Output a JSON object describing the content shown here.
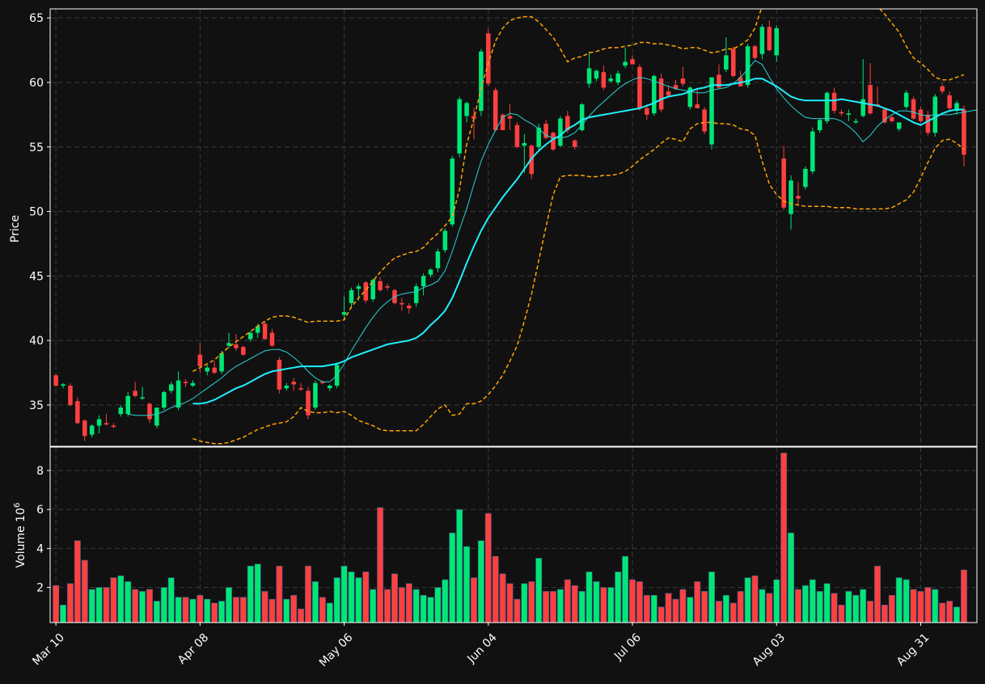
{
  "colors": {
    "background": "#111111",
    "up": "#00e676",
    "down": "#ff4040",
    "grid": "#3a3a3a",
    "axis": "#ffffff",
    "sma_fast": "#29d3d3",
    "sma_slow": "#1ff0ff",
    "bollinger": "#ffa500"
  },
  "chart_data": {
    "type": "candlestick",
    "x_tick_labels": [
      "Mar 10",
      "Apr 08",
      "May 06",
      "Jun 04",
      "Jul 06",
      "Aug 03",
      "Aug 31"
    ],
    "x_tick_index": [
      0,
      20,
      40,
      60,
      80,
      100,
      120
    ],
    "price_panel": {
      "ylabel": "Price",
      "ylim": [
        31.8,
        65.7
      ],
      "y_ticks": [
        35,
        40,
        45,
        50,
        55,
        60,
        65
      ],
      "grid": true
    },
    "volume_panel": {
      "ylabel": "Volume",
      "ylabel_exponent": "10",
      "ylabel_power": "6",
      "ylim": [
        0.2,
        9.2
      ],
      "y_ticks": [
        2,
        4,
        6,
        8
      ],
      "grid": true
    },
    "ohlc": [
      [
        37.3,
        37.4,
        36.4,
        36.5
      ],
      [
        36.5,
        36.7,
        36.3,
        36.6
      ],
      [
        36.5,
        36.7,
        34.9,
        35.0
      ],
      [
        35.3,
        35.6,
        33.5,
        33.6
      ],
      [
        33.8,
        33.9,
        32.2,
        32.6
      ],
      [
        32.7,
        33.5,
        32.5,
        33.4
      ],
      [
        33.4,
        34.2,
        32.8,
        33.9
      ],
      [
        33.6,
        34.3,
        33.4,
        33.5
      ],
      [
        33.4,
        33.6,
        33.2,
        33.3
      ],
      [
        34.3,
        35.0,
        34.1,
        34.8
      ],
      [
        34.3,
        36.0,
        34.1,
        35.7
      ],
      [
        36.1,
        36.8,
        35.6,
        35.7
      ],
      [
        35.6,
        36.4,
        35.4,
        35.6
      ],
      [
        35.1,
        35.2,
        33.6,
        33.9
      ],
      [
        33.4,
        34.8,
        33.2,
        34.8
      ],
      [
        34.8,
        36.1,
        34.6,
        36.0
      ],
      [
        36.1,
        36.8,
        35.9,
        36.6
      ],
      [
        34.8,
        37.6,
        34.6,
        36.9
      ],
      [
        36.8,
        37.0,
        36.4,
        36.7
      ],
      [
        36.5,
        36.9,
        36.4,
        36.7
      ],
      [
        38.9,
        39.8,
        37.5,
        38.0
      ],
      [
        37.6,
        38.1,
        37.3,
        37.9
      ],
      [
        37.9,
        38.4,
        37.4,
        37.5
      ],
      [
        37.6,
        39.2,
        37.4,
        39.0
      ],
      [
        39.6,
        40.6,
        39.4,
        39.8
      ],
      [
        39.7,
        40.5,
        39.2,
        39.4
      ],
      [
        39.5,
        39.6,
        38.8,
        38.9
      ],
      [
        40.1,
        40.7,
        39.9,
        40.6
      ],
      [
        40.6,
        41.3,
        40.2,
        41.1
      ],
      [
        41.3,
        41.5,
        40.1,
        40.1
      ],
      [
        40.6,
        40.9,
        39.5,
        39.6
      ],
      [
        38.5,
        38.7,
        35.9,
        36.2
      ],
      [
        36.3,
        36.7,
        36.1,
        36.5
      ],
      [
        36.8,
        37.1,
        36.1,
        36.6
      ],
      [
        36.3,
        36.7,
        36.1,
        36.2
      ],
      [
        36.1,
        36.4,
        33.9,
        34.2
      ],
      [
        34.8,
        36.9,
        34.6,
        36.7
      ],
      [
        36.8,
        36.9,
        36.6,
        36.7
      ],
      [
        36.3,
        36.6,
        36.1,
        36.5
      ],
      [
        36.5,
        38.3,
        36.3,
        38.1
      ],
      [
        42.0,
        43.4,
        41.6,
        42.2
      ],
      [
        42.9,
        44.1,
        42.5,
        43.9
      ],
      [
        44.0,
        44.4,
        43.1,
        44.2
      ],
      [
        44.5,
        44.6,
        42.9,
        43.1
      ],
      [
        43.2,
        44.8,
        43.0,
        44.7
      ],
      [
        44.6,
        44.9,
        43.8,
        43.9
      ],
      [
        44.2,
        44.4,
        43.9,
        44.1
      ],
      [
        43.9,
        44.0,
        42.8,
        42.9
      ],
      [
        42.9,
        43.3,
        42.3,
        42.8
      ],
      [
        42.7,
        42.9,
        42.1,
        42.5
      ],
      [
        42.9,
        44.4,
        42.6,
        44.2
      ],
      [
        44.2,
        45.2,
        43.5,
        45.0
      ],
      [
        45.1,
        45.6,
        44.9,
        45.5
      ],
      [
        45.6,
        47.1,
        45.3,
        46.9
      ],
      [
        47.0,
        48.7,
        46.8,
        48.5
      ],
      [
        49.0,
        54.3,
        48.8,
        54.1
      ],
      [
        54.5,
        58.9,
        54.2,
        58.7
      ],
      [
        57.4,
        58.5,
        56.9,
        58.4
      ],
      [
        57.4,
        58.0,
        55.6,
        57.2
      ],
      [
        57.8,
        62.6,
        57.4,
        62.4
      ],
      [
        63.8,
        64.1,
        59.7,
        59.9
      ],
      [
        59.4,
        59.6,
        56.2,
        56.3
      ],
      [
        57.5,
        57.6,
        56.3,
        56.3
      ],
      [
        57.4,
        58.3,
        56.3,
        57.2
      ],
      [
        56.7,
        56.9,
        54.9,
        55.0
      ],
      [
        55.1,
        56.0,
        53.0,
        55.3
      ],
      [
        55.1,
        55.2,
        52.5,
        52.9
      ],
      [
        55.0,
        56.8,
        54.8,
        56.5
      ],
      [
        56.8,
        57.1,
        55.6,
        55.7
      ],
      [
        56.1,
        56.2,
        54.7,
        54.8
      ],
      [
        55.1,
        57.4,
        55.0,
        57.2
      ],
      [
        57.4,
        57.8,
        56.1,
        56.3
      ],
      [
        55.5,
        55.6,
        54.8,
        55.0
      ],
      [
        56.3,
        58.4,
        56.2,
        58.3
      ],
      [
        59.9,
        62.4,
        59.6,
        61.1
      ],
      [
        60.3,
        61.0,
        60.1,
        60.9
      ],
      [
        60.8,
        61.3,
        59.4,
        59.6
      ],
      [
        60.1,
        60.6,
        60.0,
        60.3
      ],
      [
        60.0,
        60.9,
        59.8,
        60.7
      ],
      [
        61.3,
        62.7,
        61.1,
        61.6
      ],
      [
        61.8,
        62.1,
        61.4,
        61.4
      ],
      [
        61.2,
        61.4,
        57.8,
        58.0
      ],
      [
        58.0,
        58.3,
        57.1,
        57.5
      ],
      [
        57.6,
        60.6,
        57.4,
        60.5
      ],
      [
        60.3,
        60.7,
        57.7,
        57.9
      ],
      [
        59.3,
        59.8,
        58.9,
        59.0
      ],
      [
        59.8,
        60.2,
        59.4,
        59.5
      ],
      [
        60.3,
        61.2,
        59.7,
        59.9
      ],
      [
        58.1,
        59.7,
        57.9,
        59.6
      ],
      [
        58.3,
        59.5,
        58.1,
        58.0
      ],
      [
        57.9,
        58.1,
        56.0,
        56.2
      ],
      [
        55.2,
        60.4,
        54.8,
        60.4
      ],
      [
        60.6,
        61.4,
        59.5,
        59.6
      ],
      [
        61.0,
        63.5,
        60.8,
        62.1
      ],
      [
        62.6,
        62.8,
        60.4,
        60.5
      ],
      [
        60.4,
        60.9,
        59.7,
        59.7
      ],
      [
        59.8,
        63.0,
        59.6,
        62.8
      ],
      [
        62.8,
        62.9,
        61.8,
        61.9
      ],
      [
        62.2,
        64.5,
        61.8,
        64.3
      ],
      [
        64.3,
        64.8,
        62.4,
        62.5
      ],
      [
        62.1,
        64.4,
        61.6,
        64.2
      ],
      [
        54.1,
        55.1,
        50.1,
        50.3
      ],
      [
        49.8,
        52.8,
        48.6,
        52.4
      ],
      [
        51.2,
        52.3,
        50.5,
        51.0
      ],
      [
        51.9,
        53.5,
        51.7,
        53.3
      ],
      [
        53.1,
        56.5,
        52.9,
        56.2
      ],
      [
        56.3,
        57.2,
        56.1,
        57.1
      ],
      [
        57.0,
        59.3,
        56.8,
        59.2
      ],
      [
        59.2,
        59.6,
        57.6,
        57.8
      ],
      [
        57.7,
        57.9,
        57.4,
        57.6
      ],
      [
        57.5,
        57.9,
        57.0,
        57.6
      ],
      [
        56.9,
        57.2,
        56.8,
        57.0
      ],
      [
        57.4,
        61.8,
        57.3,
        58.7
      ],
      [
        59.8,
        61.5,
        57.5,
        57.6
      ],
      [
        58.3,
        59.7,
        58.1,
        58.2
      ],
      [
        57.9,
        58.0,
        56.8,
        56.9
      ],
      [
        57.3,
        57.5,
        56.9,
        57.0
      ],
      [
        56.4,
        56.8,
        56.2,
        56.9
      ],
      [
        58.1,
        59.4,
        57.9,
        59.2
      ],
      [
        58.7,
        58.9,
        57.1,
        57.2
      ],
      [
        57.9,
        58.1,
        56.9,
        57.0
      ],
      [
        57.5,
        57.8,
        55.9,
        56.1
      ],
      [
        56.1,
        59.1,
        55.8,
        58.9
      ],
      [
        59.7,
        59.9,
        59.1,
        59.3
      ],
      [
        59.0,
        59.3,
        57.8,
        58.0
      ],
      [
        57.8,
        58.6,
        57.5,
        58.4
      ],
      [
        57.9,
        58.2,
        53.5,
        54.4
      ]
    ],
    "volume": [
      2.1,
      1.1,
      2.2,
      4.4,
      3.4,
      1.9,
      2.0,
      2.0,
      2.5,
      2.6,
      2.3,
      1.9,
      1.8,
      1.9,
      1.3,
      2.0,
      2.5,
      1.5,
      1.5,
      1.4,
      1.6,
      1.4,
      1.2,
      1.3,
      2.0,
      1.5,
      1.5,
      3.1,
      3.2,
      1.8,
      1.4,
      3.1,
      1.4,
      1.6,
      0.9,
      3.1,
      2.3,
      1.5,
      1.2,
      2.5,
      3.1,
      2.8,
      2.5,
      2.8,
      1.9,
      6.1,
      1.9,
      2.7,
      2.0,
      2.2,
      1.9,
      1.6,
      1.5,
      2.0,
      2.4,
      4.8,
      6.0,
      4.1,
      2.5,
      4.4,
      5.8,
      3.6,
      2.7,
      2.2,
      1.4,
      2.2,
      2.3,
      3.5,
      1.8,
      1.8,
      1.9,
      2.4,
      2.1,
      1.8,
      2.8,
      2.3,
      2.0,
      2.0,
      2.8,
      3.6,
      2.4,
      2.3,
      1.6,
      1.6,
      1.0,
      1.7,
      1.4,
      1.9,
      1.5,
      2.3,
      1.8,
      2.8,
      1.3,
      1.6,
      1.2,
      1.8,
      2.5,
      2.6,
      1.9,
      1.7,
      2.4,
      8.9,
      4.8,
      1.9,
      2.1,
      2.4,
      1.8,
      2.2,
      1.7,
      1.1,
      1.8,
      1.6,
      1.9,
      1.3,
      3.1,
      1.1,
      1.6,
      2.5,
      2.4,
      1.9,
      1.8,
      2.0,
      1.9,
      1.2,
      1.3,
      1.0,
      2.9
    ],
    "sma_fast": {
      "start_index": 10,
      "values": [
        34.3,
        34.2,
        34.2,
        34.2,
        34.3,
        34.5,
        34.8,
        35.0,
        35.2,
        35.5,
        35.9,
        36.3,
        36.7,
        37.1,
        37.6,
        38.0,
        38.3,
        38.6,
        38.9,
        39.2,
        39.3,
        39.3,
        39.1,
        38.7,
        38.2,
        37.6,
        37.1,
        36.8,
        36.8,
        37.3,
        38.2,
        39.2,
        40.1,
        41.0,
        41.8,
        42.5,
        43.0,
        43.4,
        43.6,
        43.7,
        43.8,
        44.1,
        44.3,
        44.6,
        45.4,
        46.9,
        48.6,
        50.2,
        52.1,
        53.9,
        55.2,
        56.3,
        57.3,
        57.6,
        57.5,
        57.1,
        56.8,
        56.4,
        55.9,
        55.7,
        55.7,
        55.8,
        56.1,
        56.7,
        57.4,
        58.0,
        58.5,
        59.0,
        59.5,
        59.9,
        60.2,
        60.4,
        60.3,
        60.1,
        59.9,
        59.7,
        59.5,
        59.4,
        59.3,
        59.2,
        59.2,
        59.4,
        59.5,
        59.6,
        59.9,
        60.4,
        61.0,
        61.7,
        61.4,
        60.4,
        59.5,
        58.8,
        58.2,
        57.7,
        57.3,
        57.2,
        57.2,
        57.2,
        57.2,
        57.0,
        56.6,
        56.1,
        55.4,
        55.9,
        56.6,
        57.1,
        57.5,
        57.8,
        57.8,
        57.7,
        57.5,
        57.4,
        57.5,
        57.5,
        57.5,
        57.6,
        57.7,
        57.8,
        57.9
      ]
    },
    "sma_slow": {
      "start_index": 19,
      "values": [
        35.1,
        35.1,
        35.2,
        35.4,
        35.7,
        36.0,
        36.3,
        36.5,
        36.8,
        37.1,
        37.4,
        37.6,
        37.7,
        37.8,
        37.9,
        38.0,
        38.0,
        38.0,
        38.0,
        38.1,
        38.2,
        38.4,
        38.7,
        38.9,
        39.1,
        39.3,
        39.5,
        39.7,
        39.8,
        39.9,
        40.0,
        40.2,
        40.6,
        41.2,
        41.7,
        42.3,
        43.3,
        44.6,
        46.0,
        47.3,
        48.5,
        49.5,
        50.3,
        51.1,
        51.8,
        52.5,
        53.3,
        54.1,
        54.7,
        55.2,
        55.6,
        55.9,
        56.4,
        56.7,
        57.1,
        57.3,
        57.4,
        57.5,
        57.6,
        57.7,
        57.8,
        57.9,
        58.0,
        58.2,
        58.4,
        58.7,
        58.9,
        59.0,
        59.1,
        59.3,
        59.5,
        59.6,
        59.8,
        59.8,
        59.8,
        59.9,
        60.0,
        60.1,
        60.3,
        60.3,
        60.0,
        59.7,
        59.3,
        58.9,
        58.7,
        58.6,
        58.6,
        58.6,
        58.6,
        58.6,
        58.7,
        58.6,
        58.5,
        58.4,
        58.3,
        58.2,
        58.0,
        57.8,
        57.5,
        57.2,
        56.9,
        56.7,
        57.0,
        57.3,
        57.6,
        57.8,
        57.9,
        57.9
      ]
    },
    "bollinger_upper": {
      "start_index": 19,
      "values": [
        37.6,
        37.9,
        38.2,
        38.5,
        39.0,
        39.5,
        39.9,
        40.3,
        40.7,
        41.1,
        41.5,
        41.8,
        41.9,
        41.9,
        41.8,
        41.6,
        41.4,
        41.5,
        41.5,
        41.5,
        41.5,
        41.6,
        42.6,
        43.3,
        43.9,
        44.6,
        45.3,
        45.9,
        46.4,
        46.6,
        46.8,
        46.9,
        47.2,
        47.8,
        48.3,
        48.9,
        49.6,
        51.7,
        55.2,
        57.2,
        59.5,
        61.5,
        63.2,
        64.2,
        64.8,
        65.0,
        65.1,
        65.1,
        64.7,
        64.1,
        63.5,
        62.6,
        61.6,
        61.9,
        62.0,
        62.3,
        62.4,
        62.6,
        62.7,
        62.7,
        62.8,
        62.9,
        63.1,
        63.1,
        63.0,
        63.0,
        62.9,
        62.8,
        62.6,
        62.7,
        62.7,
        62.5,
        62.3,
        62.4,
        62.6,
        62.6,
        62.9,
        63.3,
        64.2,
        65.9,
        67.2,
        67.8,
        67.9,
        67.6,
        67.5,
        67.5,
        67.5,
        67.5,
        67.6,
        67.6,
        67.5,
        67.4,
        67.3,
        67.0,
        66.5,
        65.9,
        65.3,
        64.6,
        63.9,
        62.8,
        61.9,
        61.5,
        61.0,
        60.4,
        60.2,
        60.2,
        60.4,
        60.6
      ]
    },
    "bollinger_lower": {
      "start_index": 19,
      "values": [
        32.4,
        32.2,
        32.1,
        32.0,
        32.0,
        32.1,
        32.3,
        32.5,
        32.8,
        33.1,
        33.3,
        33.5,
        33.6,
        33.7,
        34.1,
        34.8,
        34.5,
        34.4,
        34.4,
        34.5,
        34.4,
        34.5,
        34.2,
        33.8,
        33.6,
        33.4,
        33.1,
        33.0,
        33.0,
        33.0,
        33.0,
        33.0,
        33.5,
        34.1,
        34.7,
        35.0,
        34.2,
        34.3,
        35.1,
        35.1,
        35.3,
        35.8,
        36.5,
        37.3,
        38.4,
        39.6,
        41.5,
        43.6,
        46.2,
        48.8,
        51.3,
        52.7,
        52.8,
        52.8,
        52.8,
        52.7,
        52.7,
        52.8,
        52.8,
        52.9,
        53.1,
        53.5,
        54.0,
        54.4,
        54.8,
        55.3,
        55.7,
        55.6,
        55.4,
        56.4,
        56.8,
        56.9,
        56.9,
        56.8,
        56.8,
        56.7,
        56.4,
        56.3,
        55.9,
        53.9,
        52.1,
        51.3,
        50.8,
        50.6,
        50.5,
        50.4,
        50.4,
        50.4,
        50.4,
        50.3,
        50.3,
        50.3,
        50.2,
        50.2,
        50.2,
        50.2,
        50.2,
        50.3,
        50.6,
        50.9,
        51.5,
        52.6,
        53.8,
        54.9,
        55.5,
        55.6,
        55.3,
        54.8
      ]
    }
  }
}
